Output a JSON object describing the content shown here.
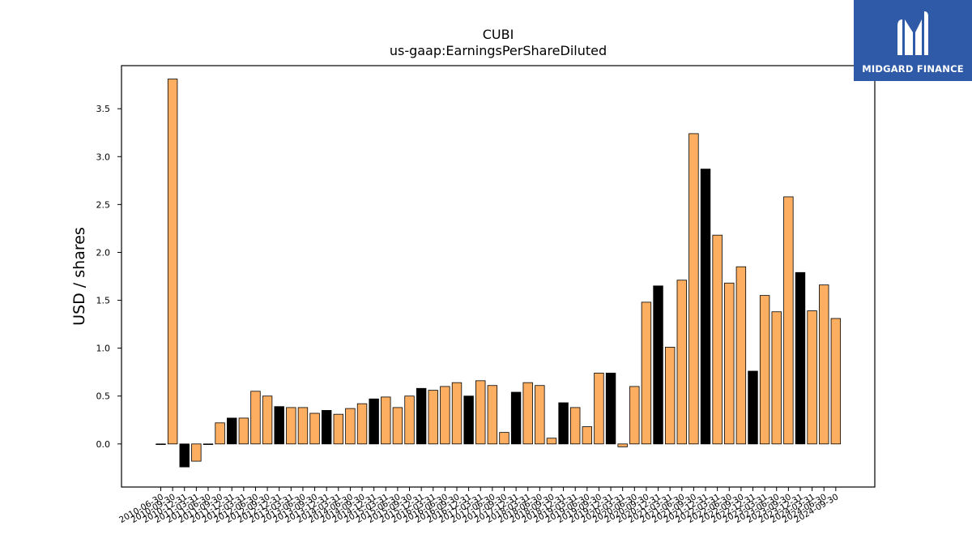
{
  "colors": {
    "bar_fill": "#fdae61",
    "bar_highlight": "#000000",
    "bar_edge": "#000000",
    "logo_bg": "#2f5aa8",
    "logo_text": "#ffffff"
  },
  "logo": {
    "text": "MIDGARD FINANCE",
    "icon": "midgard-m-logo-icon"
  },
  "chart_data": {
    "type": "bar",
    "title": "CUBI",
    "subtitle": "us-gaap:EarningsPerShareDiluted",
    "xlabel": "",
    "ylabel": "USD / shares",
    "ylim": [
      -0.45,
      3.95
    ],
    "yticks": [
      0.0,
      0.5,
      1.0,
      1.5,
      2.0,
      2.5,
      3.0,
      3.5
    ],
    "ytick_labels": [
      "0.0",
      "0.5",
      "1.0",
      "1.5",
      "2.0",
      "2.5",
      "3.0",
      "3.5"
    ],
    "grid": false,
    "categories": [
      "2010-06-30",
      "2010-09-30",
      "2010-12-31",
      "2011-03-31",
      "2011-06-30",
      "2011-09-30",
      "2011-12-31",
      "2012-03-31",
      "2012-06-30",
      "2012-09-30",
      "2012-12-31",
      "2013-03-31",
      "2013-06-30",
      "2013-09-30",
      "2013-12-31",
      "2014-03-31",
      "2014-06-30",
      "2014-09-30",
      "2014-12-31",
      "2015-03-31",
      "2015-06-30",
      "2015-09-30",
      "2015-12-31",
      "2016-03-31",
      "2016-06-30",
      "2016-09-30",
      "2016-12-31",
      "2017-03-31",
      "2017-06-30",
      "2017-09-30",
      "2017-12-31",
      "2018-03-31",
      "2018-06-30",
      "2018-09-30",
      "2018-12-31",
      "2019-03-31",
      "2019-06-30",
      "2019-09-30",
      "2019-12-31",
      "2020-03-31",
      "2020-06-30",
      "2020-09-30",
      "2020-12-31",
      "2021-03-31",
      "2021-06-30",
      "2021-09-30",
      "2021-12-31",
      "2022-03-31",
      "2022-06-30",
      "2022-09-30",
      "2022-12-31",
      "2023-03-31",
      "2023-06-30",
      "2023-09-30",
      "2023-12-31",
      "2024-03-31",
      "2024-06-30",
      "2024-09-30"
    ],
    "values": [
      0.0,
      3.81,
      -0.24,
      -0.18,
      0.0,
      0.22,
      0.27,
      0.27,
      0.55,
      0.5,
      0.39,
      0.38,
      0.38,
      0.32,
      0.35,
      0.31,
      0.37,
      0.42,
      0.47,
      0.49,
      0.38,
      0.5,
      0.58,
      0.56,
      0.6,
      0.64,
      0.5,
      0.66,
      0.61,
      0.12,
      0.54,
      0.64,
      0.61,
      0.06,
      0.43,
      0.38,
      0.18,
      0.74,
      0.74,
      -0.03,
      0.6,
      1.48,
      1.65,
      1.01,
      1.71,
      3.24,
      2.87,
      2.18,
      1.68,
      1.85,
      0.76,
      1.55,
      1.38,
      2.58,
      1.79,
      1.39,
      1.66,
      1.31
    ],
    "highlight": [
      false,
      false,
      true,
      false,
      false,
      false,
      true,
      false,
      false,
      false,
      true,
      false,
      false,
      false,
      true,
      false,
      false,
      false,
      true,
      false,
      false,
      false,
      true,
      false,
      false,
      false,
      true,
      false,
      false,
      false,
      true,
      false,
      false,
      false,
      true,
      false,
      false,
      false,
      true,
      false,
      false,
      false,
      true,
      false,
      false,
      false,
      true,
      false,
      false,
      false,
      true,
      false,
      false,
      false,
      true,
      false,
      false,
      false
    ]
  }
}
